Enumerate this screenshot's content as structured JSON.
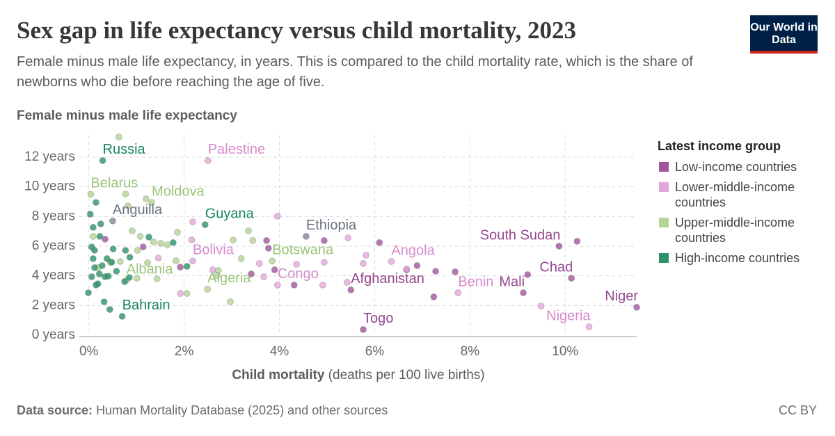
{
  "chart_data": {
    "type": "scatter",
    "title": "Sex gap in life expectancy versus child mortality, 2023",
    "subtitle": "Female minus male life expectancy, in years. This is compared to the child mortality rate, which is the share of newborns who die before reaching the age of five.",
    "ylabel": "Female minus male life expectancy",
    "xlabel": "Child mortality",
    "xlabel_unit": "(deaths per 100 live births)",
    "legend_title": "Latest income group",
    "legend_position": "right",
    "grid": true,
    "logo": "Our World in Data",
    "source_label": "Data source:",
    "source": "Human Mortality Database (2025) and other sources",
    "license": "CC BY",
    "xlim": [
      -0.2,
      11.5
    ],
    "ylim": [
      0,
      13.5
    ],
    "xticks": [
      {
        "value": 0,
        "label": "0%"
      },
      {
        "value": 2,
        "label": "2%"
      },
      {
        "value": 4,
        "label": "4%"
      },
      {
        "value": 6,
        "label": "6%"
      },
      {
        "value": 8,
        "label": "8%"
      },
      {
        "value": 10,
        "label": "10%"
      }
    ],
    "yticks": [
      {
        "value": 0,
        "label": "0 years"
      },
      {
        "value": 2,
        "label": "2 years"
      },
      {
        "value": 4,
        "label": "4 years"
      },
      {
        "value": 6,
        "label": "6 years"
      },
      {
        "value": 8,
        "label": "8 years"
      },
      {
        "value": 10,
        "label": "10 years"
      },
      {
        "value": 12,
        "label": "12 years"
      }
    ],
    "series": [
      {
        "name": "Low-income countries",
        "color": "#a2559c",
        "label_color": "#94478e",
        "labels": [
          "South Sudan",
          "Chad",
          "Afghanistan",
          "Mali",
          "Niger",
          "Togo",
          null,
          null,
          null,
          null,
          null,
          null,
          null,
          null,
          null,
          null,
          null,
          null,
          null,
          null,
          null,
          null,
          null
        ],
        "x": [
          9.87,
          10.13,
          5.5,
          9.12,
          11.5,
          5.76,
          3.77,
          4.94,
          6.1,
          7.28,
          7.69,
          6.89,
          7.24,
          9.21,
          10.25,
          4.31,
          3.9,
          3.73,
          3.41,
          6.67,
          0.34,
          1.14,
          1.92
        ],
        "values": [
          6.0,
          3.84,
          3.05,
          2.86,
          1.88,
          0.38,
          5.86,
          6.38,
          6.24,
          4.31,
          4.27,
          4.69,
          2.58,
          4.08,
          6.33,
          3.38,
          4.41,
          6.38,
          4.13,
          4.41,
          6.47,
          5.95,
          4.59
        ]
      },
      {
        "name": "Lower-middle-income countries",
        "color": "#e3a6dc",
        "label_color": "#d68bcd",
        "labels": [
          "Palestine",
          "Bolivia",
          "Angola",
          "Benin",
          "Congo",
          "Nigeria",
          null,
          null,
          null,
          null,
          null,
          null,
          null,
          null,
          null,
          null,
          null,
          null,
          null,
          null,
          null,
          null,
          null
        ],
        "x": [
          2.5,
          2.18,
          6.35,
          7.75,
          3.96,
          10.5,
          3.96,
          2.18,
          2.6,
          1.46,
          3.58,
          4.36,
          4.94,
          4.91,
          5.82,
          5.76,
          5.44,
          6.67,
          5.42,
          9.49,
          3.67,
          1.92,
          2.16
        ],
        "values": [
          11.77,
          5.0,
          4.97,
          2.86,
          3.38,
          0.56,
          8.02,
          7.64,
          4.41,
          5.2,
          4.83,
          4.78,
          4.92,
          3.38,
          5.39,
          4.83,
          6.56,
          4.45,
          3.56,
          1.97,
          3.94,
          2.81,
          6.42
        ]
      },
      {
        "name": "Upper-middle-income countries",
        "color": "#b3d494",
        "label_color": "#9cc47a",
        "labels": [
          "Belarus",
          "Moldova",
          "Botswana",
          "Albania",
          "Algeria",
          null,
          null,
          null,
          null,
          null,
          null,
          null,
          null,
          null,
          null,
          null,
          null,
          null,
          null,
          null,
          null,
          null,
          null,
          null,
          null,
          null,
          null,
          null,
          null,
          null,
          null,
          null
        ],
        "x": [
          0.04,
          1.32,
          3.85,
          0.79,
          2.49,
          0.63,
          0.77,
          0.82,
          1.2,
          0.09,
          0.91,
          1.08,
          1.86,
          3.03,
          3.35,
          1.36,
          1.65,
          1.51,
          3.2,
          2.72,
          2.69,
          2.97,
          2.06,
          1.43,
          1.01,
          0.66,
          3.44,
          0.45,
          0.19,
          1.02,
          1.83,
          1.23
        ],
        "values": [
          9.5,
          8.95,
          5.0,
          3.7,
          3.1,
          13.36,
          9.52,
          8.72,
          9.19,
          6.66,
          7.03,
          6.66,
          6.94,
          6.42,
          7.03,
          6.28,
          6.09,
          6.19,
          5.16,
          4.36,
          4.03,
          2.25,
          2.81,
          3.8,
          3.84,
          4.97,
          6.38,
          4.92,
          4.55,
          5.72,
          5.02,
          4.88
        ]
      },
      {
        "name": "High-income countries",
        "color": "#2a9468",
        "label_color": "#18875c",
        "labels": [
          "Russia",
          "Guyana",
          "Bahrain",
          null,
          null,
          null,
          null,
          null,
          null,
          null,
          null,
          null,
          null,
          null,
          null,
          null,
          null,
          null,
          null,
          null,
          null,
          null,
          null,
          null,
          null,
          null,
          null,
          null,
          null,
          null,
          null,
          null,
          null
        ],
        "x": [
          0.29,
          2.44,
          0.7,
          0.09,
          0.15,
          0.03,
          0.06,
          0.12,
          0.25,
          0.28,
          0.22,
          0.38,
          0.48,
          0.58,
          0.15,
          -0.01,
          0.32,
          0.44,
          0.77,
          0.86,
          1.26,
          2.06,
          1.77,
          0.75,
          0.06,
          0.34,
          0.23,
          0.19,
          0.51,
          0.09,
          0.41,
          0.12,
          0.85
        ],
        "values": [
          11.77,
          7.45,
          1.27,
          7.27,
          8.95,
          8.16,
          5.95,
          5.72,
          7.5,
          4.69,
          4.13,
          5.16,
          4.92,
          4.31,
          3.38,
          2.86,
          2.25,
          1.73,
          5.72,
          5.25,
          6.61,
          4.64,
          6.24,
          3.61,
          3.94,
          3.94,
          6.66,
          3.47,
          5.81,
          5.16,
          3.98,
          4.55,
          3.89
        ]
      },
      {
        "color": "#7d8896",
        "label_color": "#6b7380",
        "labels": [
          "Anguilla",
          "Ethiopia"
        ],
        "x": [
          0.5,
          4.56
        ],
        "values": [
          7.7,
          6.66
        ]
      }
    ]
  }
}
